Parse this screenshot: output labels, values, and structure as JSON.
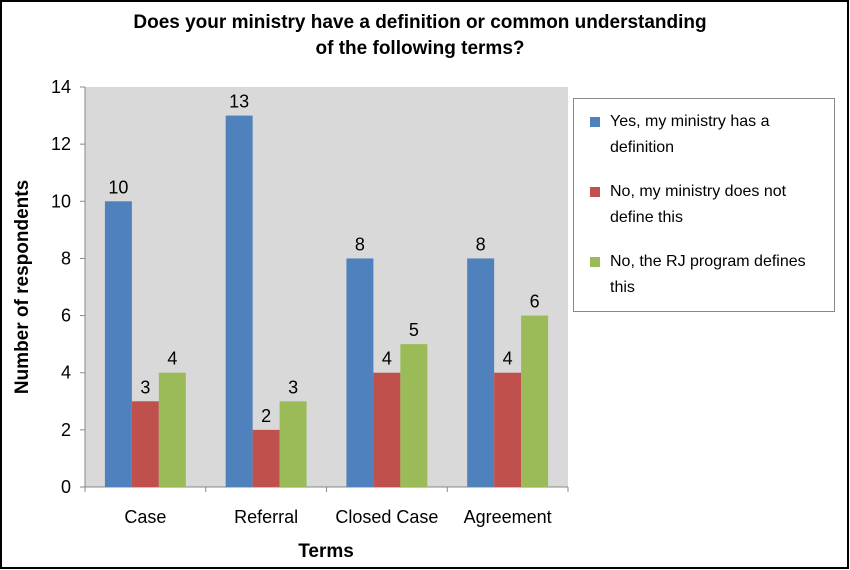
{
  "chart_data": {
    "type": "bar",
    "title": [
      "Does your ministry have a definition or common understanding",
      "of the following terms?"
    ],
    "x_label": "Terms",
    "y_label": "Number of respondents",
    "categories": [
      "Case",
      "Referral",
      "Closed Case",
      "Agreement"
    ],
    "series": [
      {
        "name": "Yes, my ministry has a definition",
        "color": "#4f81bd",
        "values": [
          10,
          13,
          8,
          8
        ]
      },
      {
        "name": "No, my ministry does not define this",
        "color": "#c0504d",
        "values": [
          3,
          2,
          4,
          4
        ]
      },
      {
        "name": "No, the RJ program defines this",
        "color": "#9bbb59",
        "values": [
          4,
          3,
          5,
          6
        ]
      }
    ],
    "ylim": [
      0,
      14
    ],
    "yticks": [
      0,
      2,
      4,
      6,
      8,
      10,
      12,
      14
    ],
    "grid": false,
    "legend": "right"
  }
}
